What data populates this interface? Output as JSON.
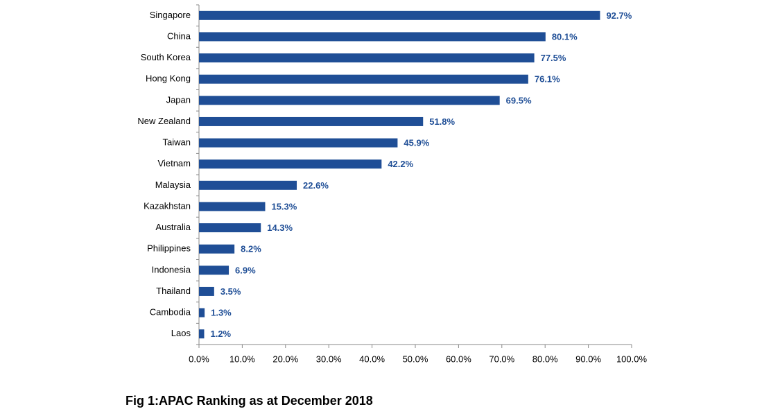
{
  "chart_data": {
    "type": "barh",
    "caption": "Fig 1:APAC Ranking as at December 2018",
    "categories": [
      "Singapore",
      "China",
      "South Korea",
      "Hong Kong",
      "Japan",
      "New Zealand",
      "Taiwan",
      "Vietnam",
      "Malaysia",
      "Kazakhstan",
      "Australia",
      "Philippines",
      "Indonesia",
      "Thailand",
      "Cambodia",
      "Laos"
    ],
    "values": [
      92.7,
      80.1,
      77.5,
      76.1,
      69.5,
      51.8,
      45.9,
      42.2,
      22.6,
      15.3,
      14.3,
      8.2,
      6.9,
      3.5,
      1.3,
      1.2
    ],
    "value_labels": [
      "92.7%",
      "80.1%",
      "77.5%",
      "76.1%",
      "69.5%",
      "51.8%",
      "45.9%",
      "42.2%",
      "22.6%",
      "15.3%",
      "14.3%",
      "8.2%",
      "6.9%",
      "3.5%",
      "1.3%",
      "1.2%"
    ],
    "color": "#1f4e96",
    "xlim": [
      0,
      100
    ],
    "xticks": [
      {
        "value": 0,
        "label": "0.0%"
      },
      {
        "value": 10,
        "label": "10.0%"
      },
      {
        "value": 20,
        "label": "20.0%"
      },
      {
        "value": 30,
        "label": "30.0%"
      },
      {
        "value": 40,
        "label": "40.0%"
      },
      {
        "value": 50,
        "label": "50.0%"
      },
      {
        "value": 60,
        "label": "60.0%"
      },
      {
        "value": 70,
        "label": "70.0%"
      },
      {
        "value": 80,
        "label": "80.0%"
      },
      {
        "value": 90,
        "label": "90.0%"
      },
      {
        "value": 100,
        "label": "100.0%"
      }
    ],
    "grid": false
  }
}
